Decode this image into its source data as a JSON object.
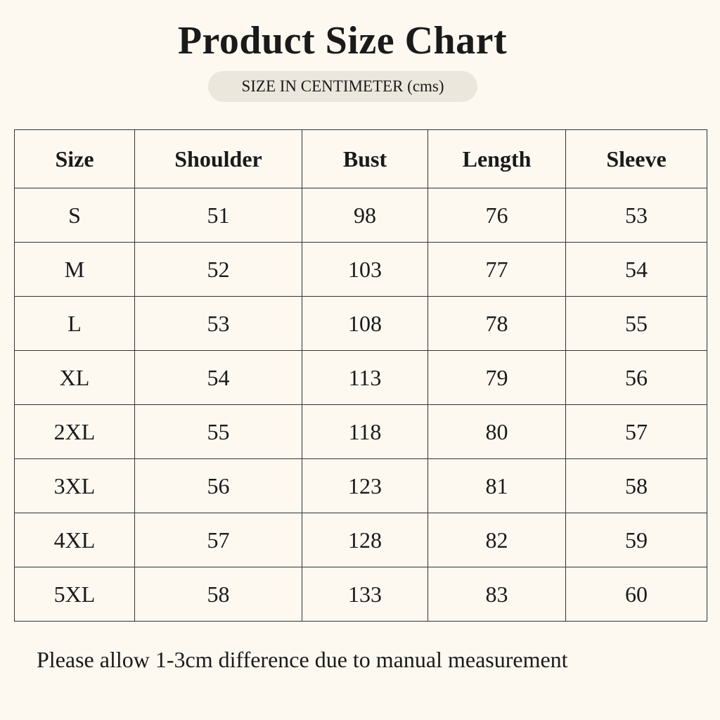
{
  "header": {
    "title": "Product Size Chart",
    "subtitle": "SIZE IN CENTIMETER (cms)"
  },
  "table": {
    "columns": [
      "Size",
      "Shoulder",
      "Bust",
      "Length",
      "Sleeve"
    ],
    "rows": [
      [
        "S",
        51,
        98,
        76,
        53
      ],
      [
        "M",
        52,
        103,
        77,
        54
      ],
      [
        "L",
        53,
        108,
        78,
        55
      ],
      [
        "XL",
        54,
        113,
        79,
        56
      ],
      [
        "2XL",
        55,
        118,
        80,
        57
      ],
      [
        "3XL",
        56,
        123,
        81,
        58
      ],
      [
        "4XL",
        57,
        128,
        82,
        59
      ],
      [
        "5XL",
        58,
        133,
        83,
        60
      ]
    ]
  },
  "footer": {
    "note": "Please allow 1-3cm difference due to manual measurement"
  }
}
